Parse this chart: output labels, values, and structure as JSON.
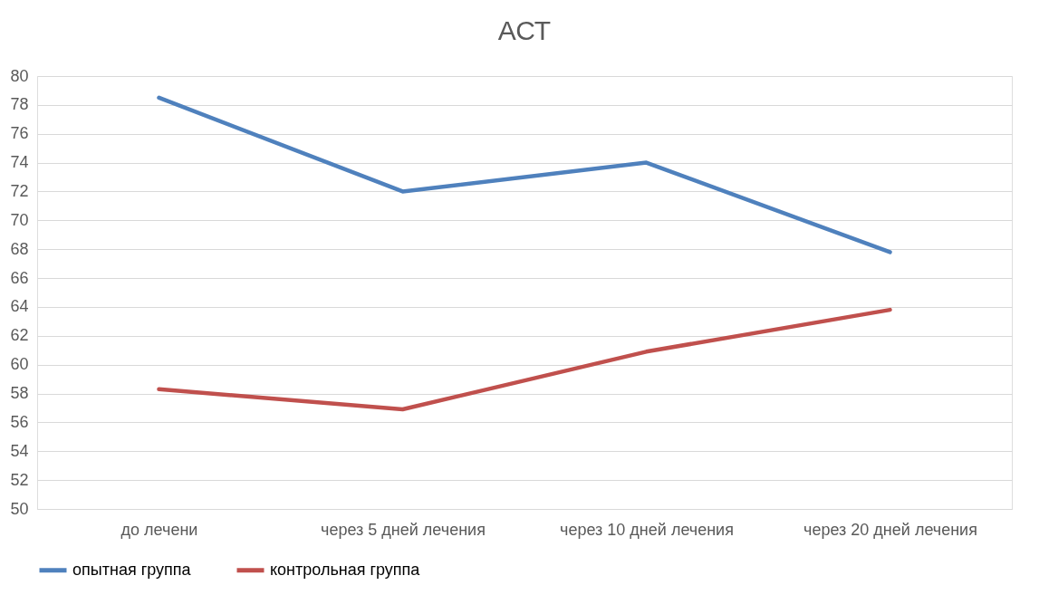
{
  "chart_data": {
    "type": "line",
    "title": "АСТ",
    "categories": [
      "до лечени",
      "через 5 дней лечения",
      "через 10 дней лечения",
      "через 20 дней лечения"
    ],
    "series": [
      {
        "name": "опытная группа",
        "color": "#4f81bd",
        "values": [
          78.5,
          72.0,
          74.0,
          67.8
        ]
      },
      {
        "name": "контрольная группа",
        "color": "#c0504d",
        "values": [
          58.3,
          56.9,
          60.9,
          63.8
        ]
      }
    ],
    "ylim": [
      50,
      80
    ],
    "yticks": [
      50,
      52,
      54,
      56,
      58,
      60,
      62,
      64,
      66,
      68,
      70,
      72,
      74,
      76,
      78,
      80
    ],
    "grid": "y",
    "legend": "bottom",
    "line_style": "solid"
  }
}
